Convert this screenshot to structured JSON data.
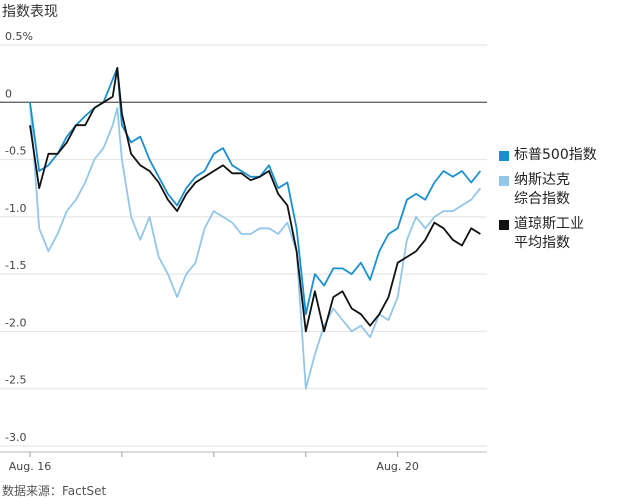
{
  "chart_data": {
    "type": "line",
    "title": "指数表现",
    "source": "数据来源：FactSet",
    "x": [
      0,
      0.1,
      0.2,
      0.3,
      0.4,
      0.5,
      0.6,
      0.7,
      0.8,
      0.9,
      0.95,
      1.0,
      1.1,
      1.2,
      1.3,
      1.4,
      1.5,
      1.6,
      1.7,
      1.8,
      1.9,
      2.0,
      2.1,
      2.2,
      2.3,
      2.4,
      2.5,
      2.6,
      2.7,
      2.8,
      2.9,
      3.0,
      3.1,
      3.2,
      3.3,
      3.4,
      3.5,
      3.6,
      3.7,
      3.8,
      3.9,
      4.0,
      4.1,
      4.2,
      4.3,
      4.4,
      4.5,
      4.6,
      4.7,
      4.8,
      4.9
    ],
    "series": [
      {
        "name": "标普500指数",
        "color": "#1a8fd0",
        "values": [
          0,
          -0.6,
          -0.55,
          -0.45,
          -0.3,
          -0.2,
          -0.12,
          -0.05,
          0.0,
          0.2,
          0.3,
          -0.2,
          -0.35,
          -0.3,
          -0.5,
          -0.65,
          -0.8,
          -0.9,
          -0.75,
          -0.65,
          -0.6,
          -0.45,
          -0.4,
          -0.55,
          -0.6,
          -0.65,
          -0.65,
          -0.55,
          -0.75,
          -0.7,
          -1.1,
          -1.85,
          -1.5,
          -1.6,
          -1.45,
          -1.45,
          -1.5,
          -1.4,
          -1.55,
          -1.3,
          -1.15,
          -1.1,
          -0.85,
          -0.8,
          -0.85,
          -0.7,
          -0.6,
          -0.65,
          -0.6,
          -0.7,
          -0.6
        ]
      },
      {
        "name": "纳斯达克综合指数",
        "color": "#93c7e9",
        "values": [
          0,
          -1.1,
          -1.3,
          -1.15,
          -0.95,
          -0.85,
          -0.7,
          -0.5,
          -0.4,
          -0.2,
          -0.05,
          -0.5,
          -1.0,
          -1.2,
          -1.0,
          -1.35,
          -1.5,
          -1.7,
          -1.5,
          -1.4,
          -1.1,
          -0.95,
          -1.0,
          -1.05,
          -1.15,
          -1.15,
          -1.1,
          -1.1,
          -1.15,
          -1.05,
          -1.3,
          -2.5,
          -2.2,
          -1.95,
          -1.8,
          -1.9,
          -2.0,
          -1.95,
          -2.05,
          -1.85,
          -1.9,
          -1.7,
          -1.2,
          -1.0,
          -1.1,
          -1.0,
          -0.95,
          -0.95,
          -0.9,
          -0.85,
          -0.75
        ]
      },
      {
        "name": "道琼斯工业平均指数",
        "color": "#111111",
        "values": [
          -0.2,
          -0.75,
          -0.45,
          -0.45,
          -0.35,
          -0.2,
          -0.2,
          -0.05,
          0.0,
          0.05,
          0.3,
          -0.1,
          -0.45,
          -0.55,
          -0.6,
          -0.7,
          -0.85,
          -0.95,
          -0.8,
          -0.7,
          -0.65,
          -0.6,
          -0.55,
          -0.62,
          -0.62,
          -0.68,
          -0.65,
          -0.6,
          -0.8,
          -0.9,
          -1.3,
          -2.0,
          -1.65,
          -2.0,
          -1.7,
          -1.65,
          -1.8,
          -1.85,
          -1.95,
          -1.85,
          -1.7,
          -1.4,
          -1.35,
          -1.3,
          -1.2,
          -1.05,
          -1.1,
          -1.2,
          -1.25,
          -1.1,
          -1.15
        ]
      }
    ],
    "xlim": [
      0,
      4.95
    ],
    "xticks": [
      {
        "value": 0,
        "label": "Aug. 16"
      },
      {
        "value": 1,
        "label": null
      },
      {
        "value": 2,
        "label": null
      },
      {
        "value": 3,
        "label": null
      },
      {
        "value": 4,
        "label": "Aug. 20"
      }
    ],
    "ylim": [
      -3.0,
      0.5
    ],
    "yticks": [
      {
        "value": 0.5,
        "label": "0.5%"
      },
      0,
      -0.5,
      {
        "value": -1.0,
        "label": "-1.0"
      },
      -1.5,
      {
        "value": -2.0,
        "label": "-2.0"
      },
      -2.5,
      {
        "value": -3.0,
        "label": "-3.0"
      }
    ],
    "grid": true,
    "legend": "right"
  }
}
